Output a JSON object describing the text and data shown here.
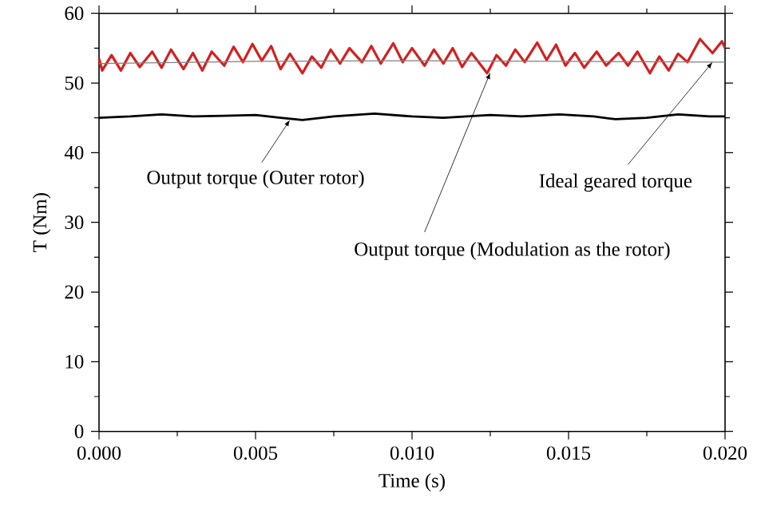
{
  "chart_data": {
    "type": "line",
    "xlabel": "Time (s)",
    "ylabel": "T (Nm)",
    "xlim": [
      0,
      0.02
    ],
    "ylim": [
      0,
      60
    ],
    "xticks": [
      {
        "value": 0,
        "label": "0.000"
      },
      {
        "value": 0.005,
        "label": "0.005"
      },
      {
        "value": 0.01,
        "label": "0.010"
      },
      {
        "value": 0.015,
        "label": "0.015"
      },
      {
        "value": 0.02,
        "label": "0.020"
      }
    ],
    "yticks": [
      0,
      10,
      20,
      30,
      40,
      50,
      60
    ],
    "marker": "none",
    "line_style": "solid",
    "series": [
      {
        "color": "#d42020",
        "x": [
          0,
          0.0001,
          0.0004,
          0.0007,
          0.001,
          0.0013,
          0.0017,
          0.002,
          0.0023,
          0.0027,
          0.003,
          0.0033,
          0.0036,
          0.004,
          0.0043,
          0.0046,
          0.0049,
          0.0052,
          0.0055,
          0.0058,
          0.0061,
          0.0065,
          0.0068,
          0.0071,
          0.0074,
          0.0077,
          0.008,
          0.0084,
          0.0087,
          0.009,
          0.0094,
          0.0097,
          0.01,
          0.0104,
          0.0107,
          0.011,
          0.0113,
          0.0116,
          0.0119,
          0.0124,
          0.0127,
          0.013,
          0.0133,
          0.0136,
          0.014,
          0.0143,
          0.0146,
          0.0149,
          0.0152,
          0.0155,
          0.0159,
          0.0162,
          0.0166,
          0.0169,
          0.0172,
          0.0176,
          0.0179,
          0.0182,
          0.0185,
          0.0188,
          0.0192,
          0.0196,
          0.0199,
          0.02
        ],
        "values": [
          53.5,
          51.8,
          54.0,
          51.8,
          54.3,
          52.3,
          54.5,
          52.2,
          54.8,
          52.0,
          54.3,
          51.8,
          54.5,
          52.5,
          55.2,
          53.0,
          55.6,
          53.2,
          55.3,
          52.0,
          54.2,
          51.4,
          53.8,
          52.2,
          54.8,
          52.8,
          55.0,
          53.0,
          55.3,
          52.8,
          55.7,
          53.0,
          55.0,
          52.5,
          54.8,
          52.8,
          55.0,
          52.3,
          54.3,
          51.4,
          54.0,
          52.5,
          54.8,
          53.0,
          55.8,
          53.3,
          55.5,
          52.5,
          54.3,
          52.2,
          54.5,
          52.5,
          54.3,
          52.5,
          54.5,
          51.4,
          53.8,
          51.8,
          54.2,
          53.0,
          56.3,
          54.3,
          56.0,
          55.0
        ]
      },
      {
        "color": "#808080",
        "x": [
          0,
          0.005,
          0.01,
          0.015,
          0.02
        ],
        "values": [
          52.8,
          53.1,
          53.2,
          53.1,
          53.0
        ]
      },
      {
        "color": "#000000",
        "x": [
          0,
          0.001,
          0.002,
          0.003,
          0.004,
          0.005,
          0.0058,
          0.0065,
          0.0075,
          0.0088,
          0.01,
          0.011,
          0.0125,
          0.0135,
          0.0147,
          0.0158,
          0.0165,
          0.0175,
          0.0185,
          0.0195,
          0.02
        ],
        "values": [
          45.0,
          45.2,
          45.5,
          45.2,
          45.3,
          45.4,
          45.0,
          44.7,
          45.2,
          45.6,
          45.2,
          45.0,
          45.4,
          45.2,
          45.5,
          45.2,
          44.8,
          45.0,
          45.5,
          45.2,
          45.2
        ]
      }
    ],
    "annotations": [
      {
        "text": "Output torque (Outer rotor)",
        "x": 0.0061,
        "y": 44.7
      },
      {
        "text": "Output torque (Modulation as the rotor)",
        "x": 0.0125,
        "y": 51.5
      },
      {
        "text": "Ideal geared torque",
        "x": 0.0196,
        "y": 53.0
      }
    ]
  }
}
